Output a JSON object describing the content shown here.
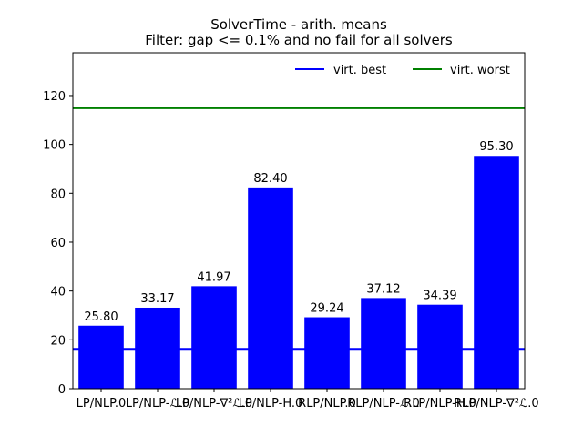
{
  "chart_data": {
    "type": "bar",
    "title": "SolverTime - arith. means",
    "subtitle": "Filter: gap <= 0.1% and no fail for all solvers",
    "xlabel": "",
    "ylabel": "",
    "categories": [
      "LP/NLP.0",
      "LP/NLP-ℒ.0",
      "LP/NLP-∇²ℒ.0",
      "LP/NLP-H.0",
      "RLP/NLP.0",
      "RLP/NLP-ℒ.0",
      "RLP/NLP-H.0",
      "RLP/NLP-∇²ℒ.0"
    ],
    "values": [
      25.8,
      33.17,
      41.97,
      82.4,
      29.24,
      37.12,
      34.39,
      95.3
    ],
    "value_labels": [
      "25.80",
      "33.17",
      "41.97",
      "82.40",
      "29.24",
      "37.12",
      "34.39",
      "95.30"
    ],
    "ylim": [
      0,
      137.5
    ],
    "yticks": [
      0,
      20,
      40,
      60,
      80,
      100,
      120
    ],
    "bar_color": "#0000ff",
    "grid": false,
    "legend_position": "top-right",
    "reference_lines": [
      {
        "name": "virt. best",
        "value": 16.3,
        "color": "#0000ff"
      },
      {
        "name": "virt. worst",
        "value": 114.8,
        "color": "#008000"
      }
    ]
  }
}
